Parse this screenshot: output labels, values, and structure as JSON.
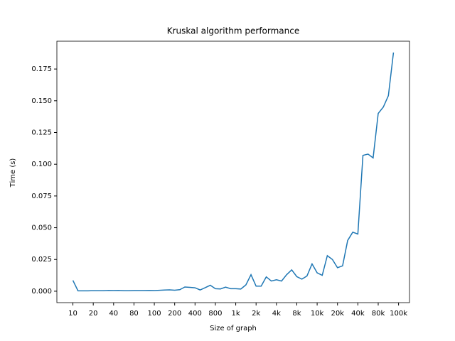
{
  "chart_data": {
    "type": "line",
    "title": "Kruskal algorithm performance",
    "xlabel": "Size of graph",
    "ylabel": "Time (s)",
    "x": [
      0,
      1,
      2,
      3,
      4,
      5,
      6,
      7,
      8,
      9,
      10,
      11,
      12,
      13,
      14,
      15,
      16,
      17,
      18,
      19,
      20,
      21,
      22,
      23,
      24,
      25,
      26,
      27,
      28,
      29,
      30,
      31,
      32,
      33,
      34,
      35,
      36,
      37,
      38,
      39,
      40,
      41,
      42,
      43,
      44,
      45,
      46,
      47,
      48,
      49,
      50,
      51,
      52,
      53,
      54,
      55,
      56,
      57,
      58,
      59,
      60,
      61,
      62,
      63
    ],
    "series": [
      {
        "color": "#1f77b4",
        "values": [
          0.0085,
          0.0003,
          0.0003,
          0.0003,
          0.0004,
          0.0004,
          0.0004,
          0.0006,
          0.0005,
          0.0006,
          0.0004,
          0.0004,
          0.0005,
          0.0005,
          0.0005,
          0.0006,
          0.0005,
          0.0007,
          0.0009,
          0.0011,
          0.0008,
          0.0012,
          0.0033,
          0.003,
          0.0027,
          0.001,
          0.0028,
          0.0047,
          0.002,
          0.0018,
          0.0032,
          0.002,
          0.002,
          0.0017,
          0.005,
          0.013,
          0.004,
          0.004,
          0.0113,
          0.008,
          0.009,
          0.008,
          0.013,
          0.0168,
          0.0115,
          0.0095,
          0.012,
          0.0215,
          0.0145,
          0.0125,
          0.028,
          0.025,
          0.0185,
          0.02,
          0.04,
          0.0465,
          0.045,
          0.107,
          0.108,
          0.105,
          0.14,
          0.145,
          0.154,
          0.188
        ]
      }
    ],
    "xlim": [
      -3.15,
      66.15
    ],
    "xticks": [
      {
        "value": 0,
        "label": "10"
      },
      {
        "value": 4,
        "label": "20"
      },
      {
        "value": 8,
        "label": "40"
      },
      {
        "value": 12,
        "label": "80"
      },
      {
        "value": 16,
        "label": "100"
      },
      {
        "value": 20,
        "label": "200"
      },
      {
        "value": 24,
        "label": "400"
      },
      {
        "value": 28,
        "label": "800"
      },
      {
        "value": 32,
        "label": "1k"
      },
      {
        "value": 36,
        "label": "2k"
      },
      {
        "value": 40,
        "label": "4k"
      },
      {
        "value": 44,
        "label": "8k"
      },
      {
        "value": 48,
        "label": "10k"
      },
      {
        "value": 52,
        "label": "20k"
      },
      {
        "value": 56,
        "label": "40k"
      },
      {
        "value": 60,
        "label": "80k"
      },
      {
        "value": 64,
        "label": "100k"
      }
    ],
    "ylim": [
      -0.009,
      0.1969
    ],
    "yticks": [
      {
        "value": 0,
        "label": "0.000"
      },
      {
        "value": 0.025,
        "label": "0.025"
      },
      {
        "value": 0.05,
        "label": "0.050"
      },
      {
        "value": 0.075,
        "label": "0.075"
      },
      {
        "value": 0.1,
        "label": "0.100"
      },
      {
        "value": 0.125,
        "label": "0.125"
      },
      {
        "value": 0.15,
        "label": "0.150"
      },
      {
        "value": 0.175,
        "label": "0.175"
      }
    ]
  }
}
